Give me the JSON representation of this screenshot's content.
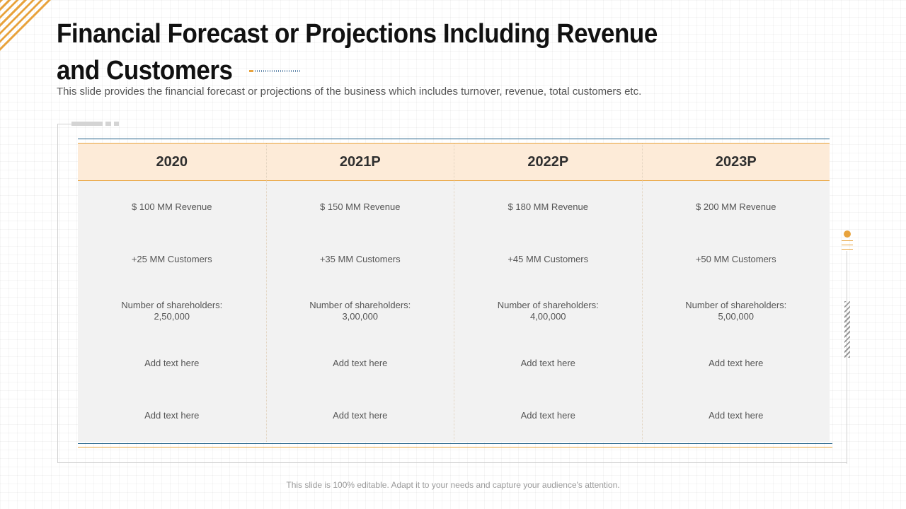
{
  "slide": {
    "title": "Financial Forecast or Projections Including Revenue and Customers",
    "subtitle": "This slide provides the financial forecast or projections of the business which includes turnover,  revenue,  total customers etc.",
    "footer": "This slide is 100% editable. Adapt it to your needs and capture your audience's attention."
  },
  "colors": {
    "accent_orange": "#e8a33d",
    "accent_blue": "#1f5e86",
    "header_fill": "#fdebd8",
    "body_fill": "#f2f2f2"
  },
  "table": {
    "columns": [
      {
        "year": "2020",
        "rows": [
          "$ 100 MM Revenue",
          "+25 MM Customers",
          "Number of shareholders:\n2,50,000",
          "Add text here",
          "Add text here"
        ]
      },
      {
        "year": "2021P",
        "rows": [
          "$ 150 MM Revenue",
          "+35 MM Customers",
          "Number of shareholders:\n3,00,000",
          "Add text here",
          "Add text here"
        ]
      },
      {
        "year": "2022P",
        "rows": [
          "$ 180 MM Revenue",
          "+45 MM Customers",
          "Number of shareholders:\n4,00,000",
          "Add text here",
          "Add text here"
        ]
      },
      {
        "year": "2023P",
        "rows": [
          "$ 200 MM Revenue",
          "+50 MM Customers",
          "Number of shareholders:\n5,00,000",
          "Add text here",
          "Add text here"
        ]
      }
    ]
  }
}
